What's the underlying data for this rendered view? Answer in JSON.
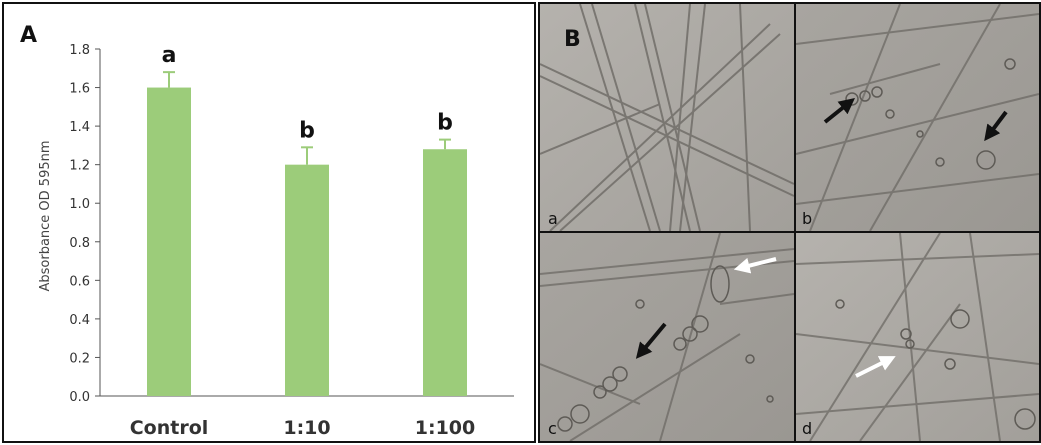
{
  "figure": {
    "panel_a_label": "A",
    "panel_b_label": "B"
  },
  "chart_data": {
    "type": "bar",
    "categories": [
      "Control",
      "1:10",
      "1:100"
    ],
    "values": [
      1.6,
      1.2,
      1.28
    ],
    "errors": [
      0.08,
      0.09,
      0.05
    ],
    "significance_letters": [
      "a",
      "b",
      "b"
    ],
    "ylabel": "Absorbance OD 595nm",
    "ylim": [
      0,
      1.8
    ],
    "yticks": [
      "0.0",
      "0.2",
      "0.4",
      "0.6",
      "0.8",
      "1.0",
      "1.2",
      "1.4",
      "1.6",
      "1.8"
    ],
    "grid": false,
    "bar_color": "#9ccc7a"
  },
  "micrographs": [
    {
      "label": "a",
      "arrows": []
    },
    {
      "label": "b",
      "arrows": [
        "black",
        "black"
      ]
    },
    {
      "label": "c",
      "arrows": [
        "white",
        "black"
      ]
    },
    {
      "label": "d",
      "arrows": [
        "white"
      ]
    }
  ]
}
